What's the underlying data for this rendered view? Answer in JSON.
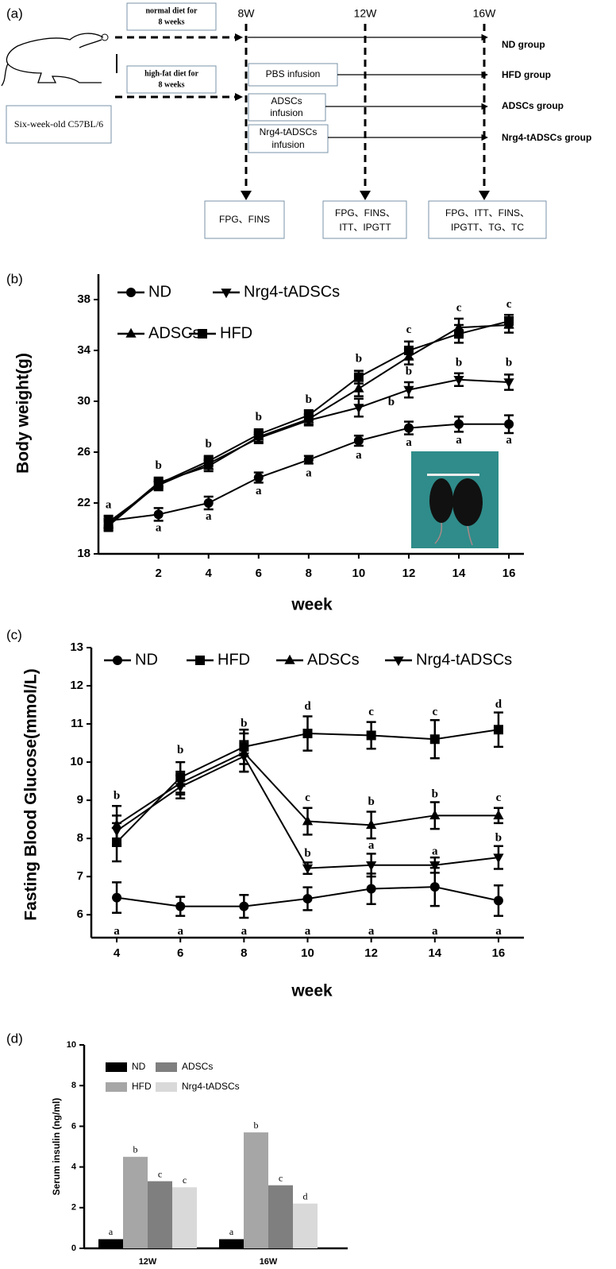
{
  "diagram": {
    "label": "(a)",
    "strain": "Six-week-old  C57BL/6",
    "normal_diet": [
      "normal diet for",
      "8  weeks"
    ],
    "high_fat_diet": [
      "high-fat diet for",
      "8  weeks"
    ],
    "timepoints": [
      "8W",
      "12W",
      "16W"
    ],
    "infusions": [
      [
        "PBS infusion"
      ],
      [
        "ADSCs",
        "infusion"
      ],
      [
        "Nrg4-tADSCs",
        "infusion"
      ]
    ],
    "groups": [
      "ND group",
      "HFD group",
      "ADSCs group",
      "Nrg4-tADSCs group"
    ],
    "measurements": [
      [
        "FPG、FINS"
      ],
      [
        "FPG、FINS、",
        "ITT、IPGTT"
      ],
      [
        "FPG、ITT、FINS、",
        "IPGTT、TG、TC"
      ]
    ]
  },
  "chart_data": [
    {
      "type": "line",
      "label": "(b)",
      "y_label": "Body weight(g)",
      "x_label": "week",
      "x": [
        0,
        2,
        4,
        6,
        8,
        10,
        12,
        14,
        16
      ],
      "xlim": [
        -0.4,
        16.6
      ],
      "xticks": [
        2,
        4,
        6,
        8,
        10,
        12,
        14,
        16
      ],
      "ylim": [
        18,
        40
      ],
      "yticks": [
        18,
        22,
        26,
        30,
        34,
        38
      ],
      "series": [
        {
          "name": "ND",
          "color": "#000000",
          "marker": "circle",
          "values": [
            20.6,
            21.1,
            22.0,
            24.0,
            25.4,
            26.9,
            27.9,
            28.2,
            28.2
          ],
          "errors": [
            0.4,
            0.5,
            0.5,
            0.4,
            0.3,
            0.4,
            0.5,
            0.6,
            0.7
          ]
        },
        {
          "name": "Nrg4-tADSCs",
          "color": "#000000",
          "marker": "triangle-down",
          "values": [
            20.5,
            23.4,
            25.1,
            27.1,
            28.5,
            29.5,
            30.9,
            31.7,
            31.5
          ],
          "errors": [
            0.4,
            0.4,
            0.4,
            0.4,
            0.4,
            0.7,
            0.6,
            0.5,
            0.6
          ]
        },
        {
          "name": "ADSCs",
          "color": "#000000",
          "marker": "triangle",
          "values": [
            20.3,
            23.6,
            24.9,
            27.2,
            28.6,
            31.0,
            33.5,
            35.8,
            36.0
          ],
          "errors": [
            0.4,
            0.4,
            0.4,
            0.4,
            0.4,
            0.6,
            0.6,
            0.7,
            0.6
          ]
        },
        {
          "name": "HFD",
          "color": "#000000",
          "marker": "square",
          "values": [
            20.2,
            23.5,
            25.3,
            27.4,
            28.9,
            31.9,
            34.0,
            35.3,
            36.3
          ],
          "errors": [
            0.4,
            0.4,
            0.4,
            0.4,
            0.4,
            0.5,
            0.7,
            0.7,
            0.5
          ]
        }
      ],
      "annotations": [
        {
          "text": "a",
          "x": 0,
          "y": 21.8
        },
        {
          "text": "b",
          "x": 2,
          "y": 24.9
        },
        {
          "text": "a",
          "x": 2,
          "y": 20.0
        },
        {
          "text": "b",
          "x": 4,
          "y": 26.6
        },
        {
          "text": "a",
          "x": 4,
          "y": 20.9
        },
        {
          "text": "b",
          "x": 6,
          "y": 28.7
        },
        {
          "text": "a",
          "x": 6,
          "y": 22.9
        },
        {
          "text": "b",
          "x": 8,
          "y": 30.1
        },
        {
          "text": "a",
          "x": 8,
          "y": 24.3
        },
        {
          "text": "b",
          "x": 10,
          "y": 33.3
        },
        {
          "text": "b",
          "x": 11.3,
          "y": 29.9
        },
        {
          "text": "a",
          "x": 10,
          "y": 25.7
        },
        {
          "text": "c",
          "x": 12,
          "y": 35.6
        },
        {
          "text": "b",
          "x": 12,
          "y": 32.3
        },
        {
          "text": "a",
          "x": 12,
          "y": 26.7
        },
        {
          "text": "c",
          "x": 14,
          "y": 37.3
        },
        {
          "text": "b",
          "x": 14,
          "y": 33.0
        },
        {
          "text": "a",
          "x": 14,
          "y": 26.9
        },
        {
          "text": "c",
          "x": 16,
          "y": 37.6
        },
        {
          "text": "b",
          "x": 16,
          "y": 33.0
        },
        {
          "text": "a",
          "x": 16,
          "y": 26.9
        }
      ]
    },
    {
      "type": "line",
      "label": "(c)",
      "y_label": "Fasting Blood Glucose(mmol/L)",
      "x_label": "week",
      "x": [
        4,
        6,
        8,
        10,
        12,
        14,
        16
      ],
      "xlim": [
        3.2,
        16.8
      ],
      "xticks": [
        4,
        6,
        8,
        10,
        12,
        14,
        16
      ],
      "ylim": [
        5.4,
        13
      ],
      "yticks": [
        6,
        7,
        8,
        9,
        10,
        11,
        12,
        13
      ],
      "series": [
        {
          "name": "ND",
          "color": "#000000",
          "marker": "circle",
          "values": [
            6.45,
            6.22,
            6.22,
            6.42,
            6.68,
            6.73,
            6.37
          ],
          "errors": [
            0.4,
            0.25,
            0.3,
            0.3,
            0.4,
            0.5,
            0.4
          ]
        },
        {
          "name": "HFD",
          "color": "#000000",
          "marker": "square",
          "values": [
            7.9,
            9.6,
            10.4,
            10.75,
            10.7,
            10.6,
            10.85
          ],
          "errors": [
            0.5,
            0.4,
            0.45,
            0.45,
            0.35,
            0.5,
            0.45
          ]
        },
        {
          "name": "ADSCs",
          "color": "#000000",
          "marker": "triangle",
          "values": [
            8.35,
            9.45,
            10.25,
            8.45,
            8.35,
            8.6,
            8.6
          ],
          "errors": [
            0.5,
            0.3,
            0.5,
            0.35,
            0.35,
            0.35,
            0.2
          ]
        },
        {
          "name": "Nrg4-tADSCs",
          "color": "#000000",
          "marker": "triangle-down",
          "values": [
            8.2,
            9.35,
            10.15,
            7.22,
            7.3,
            7.3,
            7.5
          ],
          "errors": [
            0.4,
            0.3,
            0.4,
            0.15,
            0.3,
            0.2,
            0.3
          ]
        }
      ],
      "annotations": [
        {
          "text": "b",
          "x": 4,
          "y": 9.1
        },
        {
          "text": "a",
          "x": 4,
          "y": 5.55
        },
        {
          "text": "b",
          "x": 6,
          "y": 10.3
        },
        {
          "text": "a",
          "x": 6,
          "y": 5.55
        },
        {
          "text": "b",
          "x": 8,
          "y": 11.0
        },
        {
          "text": "a",
          "x": 8,
          "y": 5.55
        },
        {
          "text": "d",
          "x": 10,
          "y": 11.45
        },
        {
          "text": "c",
          "x": 10,
          "y": 9.05
        },
        {
          "text": "b",
          "x": 10,
          "y": 7.6
        },
        {
          "text": "a",
          "x": 10,
          "y": 5.55
        },
        {
          "text": "c",
          "x": 12,
          "y": 11.3
        },
        {
          "text": "b",
          "x": 12,
          "y": 8.95
        },
        {
          "text": "a",
          "x": 12,
          "y": 7.8
        },
        {
          "text": "a",
          "x": 12,
          "y": 5.55
        },
        {
          "text": "c",
          "x": 14,
          "y": 11.3
        },
        {
          "text": "b",
          "x": 14,
          "y": 9.15
        },
        {
          "text": "a",
          "x": 14,
          "y": 7.65
        },
        {
          "text": "a",
          "x": 14,
          "y": 5.55
        },
        {
          "text": "d",
          "x": 16,
          "y": 11.5
        },
        {
          "text": "c",
          "x": 16,
          "y": 9.05
        },
        {
          "text": "b",
          "x": 16,
          "y": 8.0
        },
        {
          "text": "a",
          "x": 16,
          "y": 5.55
        }
      ]
    },
    {
      "type": "bar",
      "label": "(d)",
      "y_label": "Serum insulin (ng/ml)",
      "categories": [
        "12W",
        "16W"
      ],
      "ylim": [
        0,
        10
      ],
      "yticks": [
        0,
        2,
        4,
        6,
        8,
        10
      ],
      "series": [
        {
          "name": "ND",
          "color": "#000000",
          "values": [
            0.45,
            0.45
          ],
          "letters": [
            "a",
            "a"
          ]
        },
        {
          "name": "HFD",
          "color": "#a6a6a6",
          "values": [
            4.5,
            5.7
          ],
          "letters": [
            "b",
            "b"
          ]
        },
        {
          "name": "ADSCs",
          "color": "#7f7f7f",
          "values": [
            3.3,
            3.1
          ],
          "letters": [
            "c",
            "c"
          ]
        },
        {
          "name": "Nrg4-tADSCs",
          "color": "#d9d9d9",
          "values": [
            3.0,
            2.2
          ],
          "letters": [
            "c",
            "d"
          ]
        }
      ]
    }
  ]
}
